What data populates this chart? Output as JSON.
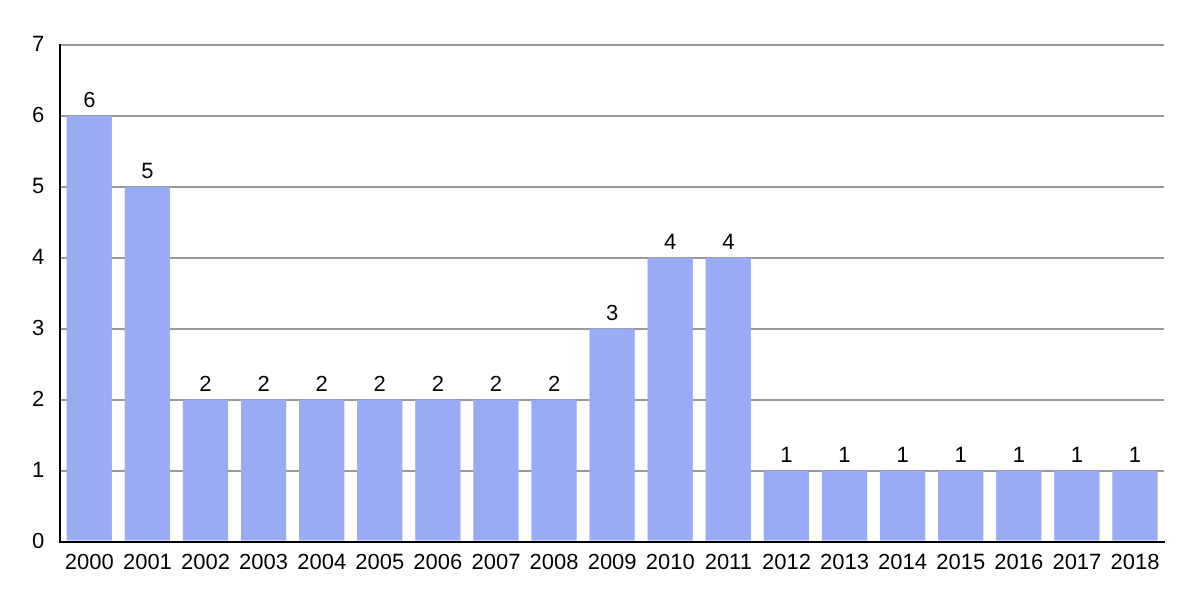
{
  "chart_data": {
    "type": "bar",
    "categories": [
      "2000",
      "2001",
      "2002",
      "2003",
      "2004",
      "2005",
      "2006",
      "2007",
      "2008",
      "2009",
      "2010",
      "2011",
      "2012",
      "2013",
      "2014",
      "2015",
      "2016",
      "2017",
      "2018"
    ],
    "values": [
      6,
      5,
      2,
      2,
      2,
      2,
      2,
      2,
      2,
      3,
      4,
      4,
      1,
      1,
      1,
      1,
      1,
      1,
      1
    ],
    "color": "#9aabf5",
    "ylim": [
      0,
      7
    ],
    "yticks": [
      0,
      1,
      2,
      3,
      4,
      5,
      6,
      7
    ],
    "grid": "y",
    "data_labels": true
  }
}
